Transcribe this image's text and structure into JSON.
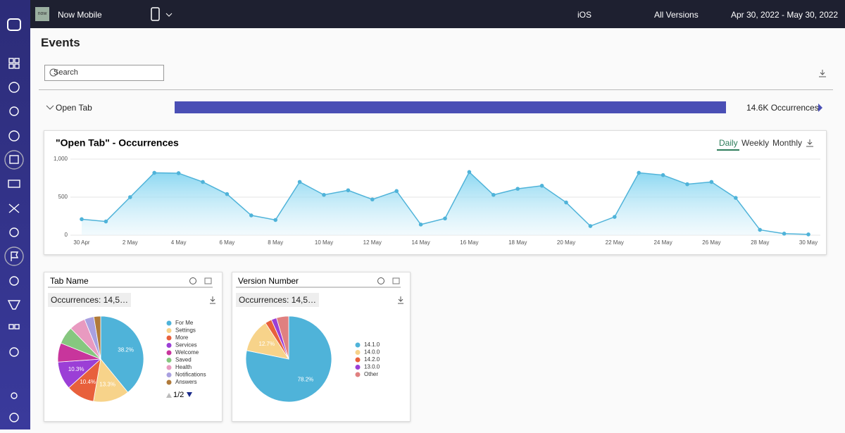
{
  "header": {
    "logo": "now",
    "app_name": "Now Mobile",
    "platform": "iOS",
    "version": "All Versions",
    "date_range": "Apr 30, 2022 - May 30, 2022"
  },
  "page_title": "Events",
  "search_placeholder": "Search",
  "event_row": {
    "name": "Open Tab",
    "occurrences": "14.6K Occurrences"
  },
  "chart_data": [
    {
      "type": "line",
      "title": "\"Open Tab\" - Occurrences",
      "view_options": [
        "Daily",
        "Weekly",
        "Monthly"
      ],
      "categories": [
        "30 Apr",
        null,
        "2 May",
        null,
        "4 May",
        null,
        "6 May",
        null,
        "8 May",
        null,
        "10 May",
        null,
        "12 May",
        null,
        "14 May",
        null,
        "16 May",
        null,
        "18 May",
        null,
        "20 May",
        null,
        "22 May",
        null,
        "24 May",
        null,
        "26 May",
        null,
        "28 May",
        null,
        "30 May"
      ],
      "values": [
        210,
        180,
        500,
        820,
        815,
        700,
        540,
        260,
        200,
        700,
        530,
        590,
        470,
        580,
        140,
        220,
        830,
        530,
        610,
        650,
        430,
        120,
        240,
        820,
        790,
        670,
        700,
        490,
        70,
        20,
        10
      ],
      "color": "#4fb3d9",
      "ylim": [
        0,
        1000
      ],
      "yticks": [
        0,
        500,
        {
          "value": 1000,
          "label": "1,000"
        }
      ],
      "grid": true
    },
    {
      "type": "pie",
      "title": "Tab Name",
      "subtitle": "Occurrences: 14,5…",
      "categories": [
        "For Me",
        "Settings",
        "More",
        "Services",
        "Welcome",
        "Saved",
        "Health",
        "Notifications",
        "Answers"
      ],
      "values": [
        38.2,
        13.3,
        10.4,
        10.3,
        7,
        6.5,
        6,
        3.5,
        2.5
      ],
      "value_labels": [
        "38.2%",
        "13.3%",
        "10.4%",
        "10.3%",
        null,
        null,
        null,
        null,
        null
      ],
      "colors": [
        "#4fb3d9",
        "#f7d38a",
        "#e8603c",
        "#9b3fd6",
        "#c8359c",
        "#86c77f",
        "#e89ac0",
        "#a9a0e0",
        "#b07a3a"
      ],
      "pagination": "1/2"
    },
    {
      "type": "pie",
      "title": "Version Number",
      "subtitle": "Occurrences: 14,5…",
      "categories": [
        "14.1.0",
        "14.0.0",
        "14.2.0",
        "13.0.0",
        "Other"
      ],
      "values": [
        78.2,
        12.7,
        2.5,
        2,
        4.6
      ],
      "value_labels": [
        "78.2%",
        "12.7%",
        null,
        null,
        null
      ],
      "colors": [
        "#4fb3d9",
        "#f7d38a",
        "#e8603c",
        "#9b3fd6",
        "#e08080"
      ]
    }
  ]
}
